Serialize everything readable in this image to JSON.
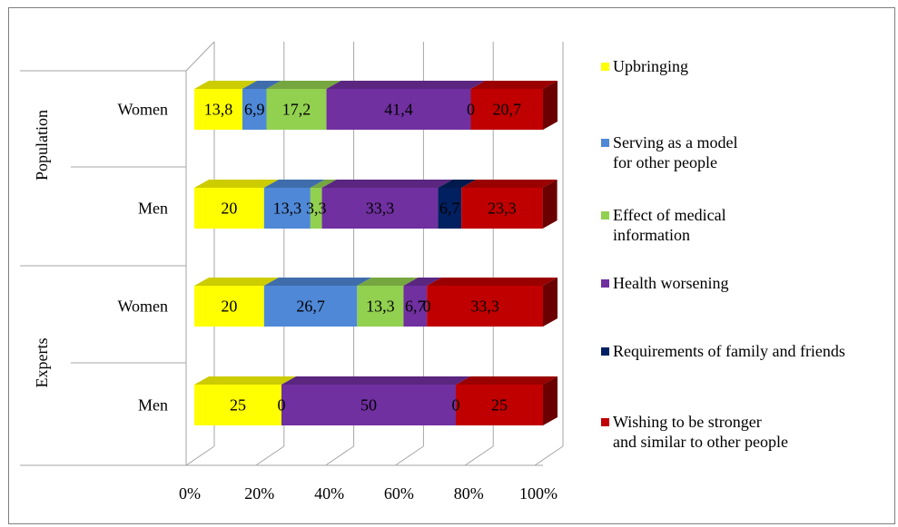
{
  "chart_data": {
    "type": "bar",
    "stacked": "100%",
    "orientation": "horizontal",
    "three_d": true,
    "groups": [
      {
        "label": "Population",
        "rows": [
          "Women",
          "Men"
        ]
      },
      {
        "label": "Experts",
        "rows": [
          "Women",
          "Men"
        ]
      }
    ],
    "categories": [
      "Women",
      "Men",
      "Women",
      "Men"
    ],
    "series": [
      {
        "name": "Upbringing",
        "color": "#ffff00",
        "values": [
          13.8,
          20,
          20,
          25
        ],
        "labels": [
          "13,8",
          "20",
          "20",
          "25"
        ]
      },
      {
        "name": "Serving as a model\nfor other people",
        "color": "#4f88d6",
        "values": [
          6.9,
          13.3,
          26.7,
          0
        ],
        "labels": [
          "6,9",
          "13,3",
          "26,7",
          "0"
        ]
      },
      {
        "name": "Effect of medical\ninformation",
        "color": "#92d050",
        "values": [
          17.2,
          3.3,
          13.3,
          0
        ],
        "labels": [
          "17,2",
          "3,3",
          "13,3",
          ""
        ]
      },
      {
        "name": "Health worsening",
        "color": "#7030a0",
        "values": [
          41.4,
          33.3,
          6.7,
          50
        ],
        "labels": [
          "41,4",
          "33,3",
          "6,7",
          "50"
        ]
      },
      {
        "name": "Requirements of family and friends",
        "color": "#002060",
        "values": [
          0,
          6.7,
          0,
          0
        ],
        "labels": [
          "0",
          "6,7",
          "0",
          "0"
        ]
      },
      {
        "name": "Wishing to be stronger\nand similar to other people",
        "color": "#c00000",
        "values": [
          20.7,
          23.3,
          33.3,
          25
        ],
        "labels": [
          "20,7",
          "23,3",
          "33,3",
          "25"
        ]
      }
    ],
    "x_ticks": [
      "0%",
      "20%",
      "40%",
      "60%",
      "80%",
      "100%"
    ],
    "xlim": [
      0,
      100
    ],
    "grid": true,
    "legend_position": "right"
  }
}
